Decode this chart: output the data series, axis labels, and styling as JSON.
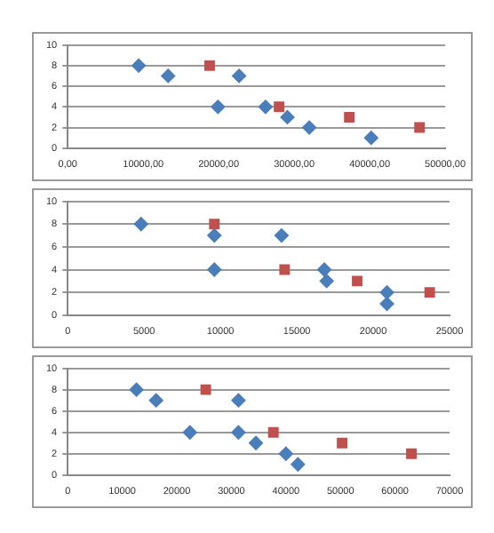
{
  "chart_data": [
    {
      "type": "scatter",
      "xlim": [
        0,
        50000
      ],
      "xticks": [
        {
          "value": 0,
          "label": "0,00"
        },
        {
          "value": 10000,
          "label": "10000,00"
        },
        {
          "value": 20000,
          "label": "20000,00"
        },
        {
          "value": 30000,
          "label": "30000,00"
        },
        {
          "value": 40000,
          "label": "40000,00"
        },
        {
          "value": 50000,
          "label": "50000,00"
        }
      ],
      "ylim": [
        0,
        10
      ],
      "yticks": [
        0,
        2,
        4,
        6,
        8,
        10
      ],
      "grid": "y",
      "legend": false,
      "series": [
        {
          "color": "#4a7ebb",
          "marker": "diamond",
          "x": [
            9400,
            13300,
            19900,
            22700,
            26200,
            29100,
            32000,
            40200
          ],
          "values": [
            8,
            7,
            4,
            7,
            4,
            3,
            2,
            1
          ]
        },
        {
          "color": "#c0504d",
          "marker": "square",
          "x": [
            18800,
            28000,
            37300,
            46600
          ],
          "values": [
            8,
            4,
            3,
            2
          ]
        }
      ]
    },
    {
      "type": "scatter",
      "xlim": [
        0,
        25000
      ],
      "xticks": [
        0,
        5000,
        10000,
        15000,
        20000,
        25000
      ],
      "ylim": [
        0,
        10
      ],
      "yticks": [
        0,
        2,
        4,
        6,
        8,
        10
      ],
      "grid": "y",
      "legend": false,
      "series": [
        {
          "color": "#4a7ebb",
          "marker": "diamond",
          "x": [
            4800,
            9600,
            9600,
            14000,
            16800,
            16950,
            20900,
            20900
          ],
          "values": [
            8,
            7,
            4,
            7,
            4,
            3,
            2,
            1
          ]
        },
        {
          "color": "#c0504d",
          "marker": "square",
          "x": [
            9600,
            14200,
            18950,
            23700
          ],
          "values": [
            8,
            4,
            3,
            2
          ]
        }
      ]
    },
    {
      "type": "scatter",
      "xlim": [
        0,
        70000
      ],
      "xticks": [
        0,
        10000,
        20000,
        30000,
        40000,
        50000,
        60000,
        70000
      ],
      "ylim": [
        0,
        10
      ],
      "yticks": [
        0,
        2,
        4,
        6,
        8,
        10
      ],
      "grid": "y",
      "legend": false,
      "series": [
        {
          "color": "#4a7ebb",
          "marker": "diamond",
          "x": [
            12600,
            16200,
            22400,
            31300,
            31300,
            34500,
            40000,
            42200
          ],
          "values": [
            8,
            7,
            4,
            7,
            4,
            3,
            2,
            1
          ]
        },
        {
          "color": "#c0504d",
          "marker": "square",
          "x": [
            25300,
            37700,
            50300,
            63000
          ],
          "values": [
            8,
            4,
            3,
            2
          ]
        }
      ]
    }
  ]
}
